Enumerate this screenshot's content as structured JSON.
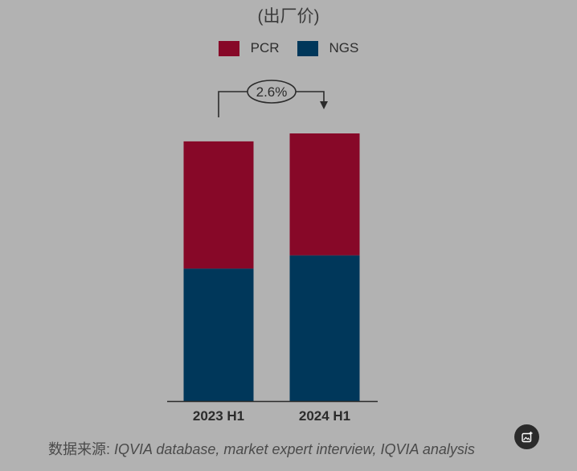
{
  "chart_data": {
    "type": "bar",
    "stacked": true,
    "subtitle": "(出厂价)",
    "categories": [
      "2023 H1",
      "2024 H1"
    ],
    "series": [
      {
        "name": "NGS",
        "values": [
          50,
          55
        ],
        "color": "#00375a"
      },
      {
        "name": "PCR",
        "values": [
          48,
          46
        ],
        "color": "#870828"
      }
    ],
    "legend": [
      {
        "name": "PCR",
        "color": "#870828"
      },
      {
        "name": "NGS",
        "color": "#00375a"
      }
    ],
    "growth_annotation": "2.6%",
    "ylim": [
      0,
      101
    ]
  },
  "source": {
    "label": "数据来源:",
    "text": " IQVIA database, market expert interview, IQVIA analysis"
  }
}
